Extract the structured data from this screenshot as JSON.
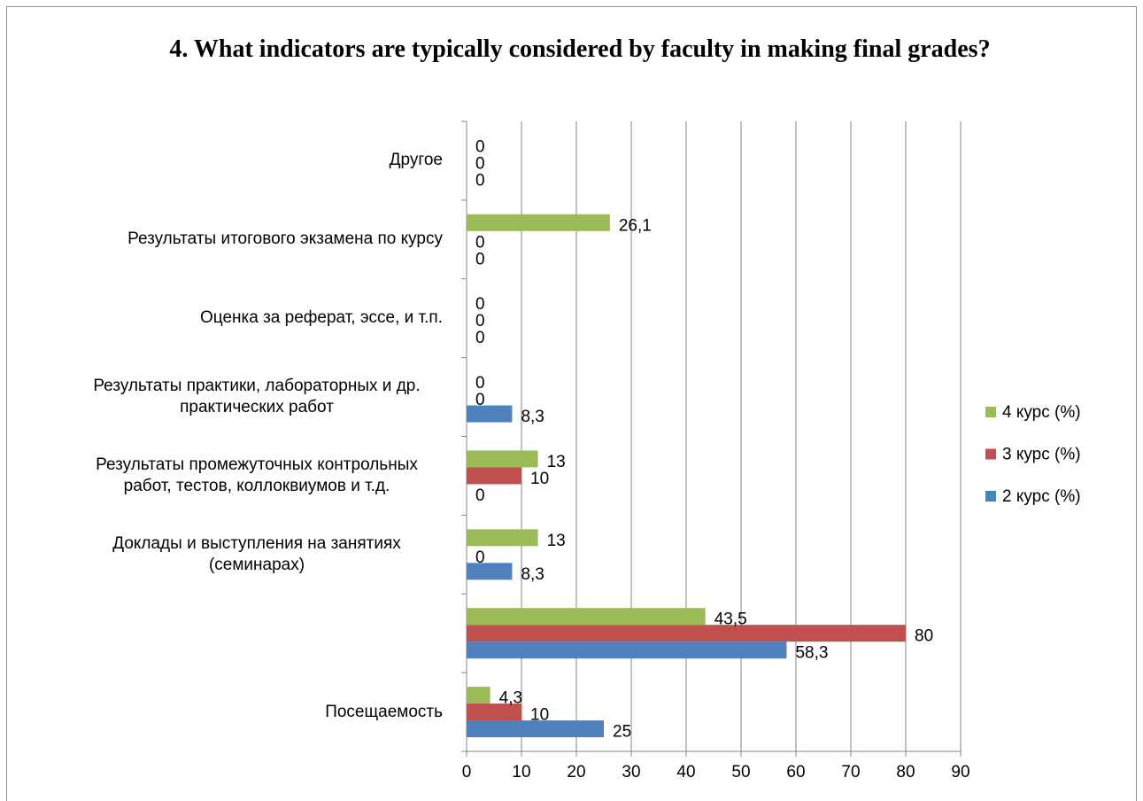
{
  "chart_data": {
    "type": "hbar",
    "title": "4. What indicators are typically considered by faculty in making final grades?",
    "categories": [
      "Посещаемость",
      null,
      "Доклады и выступления на занятиях (семинарах)",
      "Результаты промежуточных контрольных работ, тестов, коллоквиумов и т.д.",
      "Результаты практики, лабораторных и др. практических работ",
      "Оценка за реферат, эссе, и т.п.",
      "Результаты итогового экзамена по курсу",
      "Другое"
    ],
    "series": [
      {
        "name": "2 курс (%)",
        "color": "#4f81bd",
        "values": [
          25,
          58.3,
          8.3,
          0,
          8.3,
          0,
          0,
          0
        ],
        "value_labels": [
          "25",
          "58,3",
          "8,3",
          "0",
          "8,3",
          "0",
          "0",
          "0"
        ]
      },
      {
        "name": "3 курс (%)",
        "color": "#c0504d",
        "values": [
          10,
          80,
          0,
          10,
          0,
          0,
          0,
          0
        ],
        "value_labels": [
          "10",
          "80",
          "0",
          "10",
          "0",
          "0",
          "0",
          "0"
        ]
      },
      {
        "name": "4 курс (%)",
        "color": "#9bbb59",
        "values": [
          4.3,
          43.5,
          13,
          13,
          0,
          0,
          26.1,
          0
        ],
        "value_labels": [
          "4,3",
          "43,5",
          "13",
          "13",
          "0",
          "0",
          "26,1",
          "0"
        ]
      }
    ],
    "xlim": [
      0,
      90
    ],
    "xticks": [
      0,
      10,
      20,
      30,
      40,
      50,
      60,
      70,
      80,
      90
    ],
    "grid": true,
    "legend": "right"
  }
}
